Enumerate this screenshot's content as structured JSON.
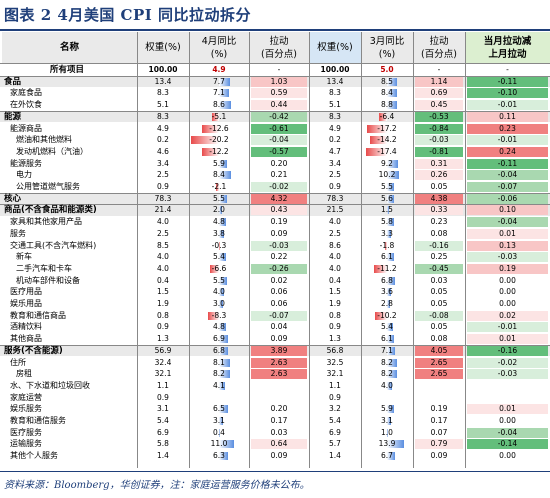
{
  "title": "图表 2   4月美国 CPI 同比拉动拆分",
  "footer": "资料来源：Bloomberg，华创证券，注：家庭运营服务价格未公布。",
  "headers": {
    "name": "名称",
    "weight1": "权重(%)",
    "yoy1": "4月同比\n(%)",
    "contrib1": "拉动\n(百分点)",
    "weight2": "权重(%)",
    "yoy2": "3月同比\n(%)",
    "contrib2": "拉动\n(百分点)",
    "diff": "当月拉动减\n上月拉动"
  },
  "colors": {
    "pos_strong": "#f08080",
    "pos_mid": "#f8c6c6",
    "pos_light": "#fce4e4",
    "neg_strong": "#63be7b",
    "neg_mid": "#a9d8b0",
    "neg_light": "#d8eedb",
    "bar_blue": "#5a8ee0",
    "bar_red": "#e84a4a"
  },
  "rows": [
    {
      "name": "所有项目",
      "indent": 0,
      "bold": true,
      "w1": "100.00",
      "y1": "4.9",
      "c1": "",
      "w2": "100.00",
      "y2": "5.0",
      "c2": "",
      "d": "",
      "total": true
    },
    {
      "name": "食品",
      "indent": 0,
      "bold": true,
      "w1": "13.4",
      "y1": "7.7",
      "c1": "1.03",
      "w2": "13.4",
      "y2": "8.5",
      "c2": "1.14",
      "d": "-0.11",
      "b1": 7.7,
      "b2": 8.5
    },
    {
      "name": "家庭食品",
      "indent": 1,
      "w1": "8.3",
      "y1": "7.1",
      "c1": "0.59",
      "w2": "8.3",
      "y2": "8.4",
      "c2": "0.69",
      "d": "-0.10",
      "b1": 7.1,
      "b2": 8.4
    },
    {
      "name": "在外饮食",
      "indent": 1,
      "w1": "5.1",
      "y1": "8.6",
      "c1": "0.44",
      "w2": "5.1",
      "y2": "8.8",
      "c2": "0.45",
      "d": "-0.01",
      "b1": 8.6,
      "b2": 8.8
    },
    {
      "name": "能源",
      "indent": 0,
      "bold": true,
      "w1": "8.3",
      "y1": "-5.1",
      "c1": "-0.42",
      "w2": "8.3",
      "y2": "-6.4",
      "c2": "-0.53",
      "d": "0.11",
      "b1": -5.1,
      "b2": -6.4
    },
    {
      "name": "能源商品",
      "indent": 1,
      "w1": "4.9",
      "y1": "-12.6",
      "c1": "-0.61",
      "w2": "4.9",
      "y2": "-17.2",
      "c2": "-0.84",
      "d": "0.23",
      "b1": -12.6,
      "b2": -17.2
    },
    {
      "name": "燃油和其他燃料",
      "indent": 2,
      "w1": "0.2",
      "y1": "-20.2",
      "c1": "-0.04",
      "w2": "0.2",
      "y2": "-14.2",
      "c2": "-0.03",
      "d": "-0.01",
      "b1": -20.2,
      "b2": -14.2
    },
    {
      "name": "发动机燃料（汽油）",
      "indent": 2,
      "w1": "4.6",
      "y1": "-12.2",
      "c1": "-0.57",
      "w2": "4.7",
      "y2": "-17.4",
      "c2": "-0.81",
      "d": "0.24",
      "b1": -12.2,
      "b2": -17.4
    },
    {
      "name": "能源服务",
      "indent": 1,
      "w1": "3.4",
      "y1": "5.9",
      "c1": "0.20",
      "w2": "3.4",
      "y2": "9.2",
      "c2": "0.31",
      "d": "-0.11",
      "b1": 5.9,
      "b2": 9.2
    },
    {
      "name": "电力",
      "indent": 2,
      "w1": "2.5",
      "y1": "8.4",
      "c1": "0.21",
      "w2": "2.5",
      "y2": "10.2",
      "c2": "0.26",
      "d": "-0.04",
      "b1": 8.4,
      "b2": 10.2
    },
    {
      "name": "公用管道燃气服务",
      "indent": 2,
      "w1": "0.9",
      "y1": "-2.1",
      "c1": "-0.02",
      "w2": "0.9",
      "y2": "5.5",
      "c2": "0.05",
      "d": "-0.07",
      "b1": -2.1,
      "b2": 5.5
    },
    {
      "name": "核心",
      "indent": 0,
      "bold": true,
      "w1": "78.3",
      "y1": "5.5",
      "c1": "4.32",
      "w2": "78.3",
      "y2": "5.6",
      "c2": "4.38",
      "d": "-0.06",
      "b1": 5.5,
      "b2": 5.6,
      "core": true
    },
    {
      "name": "商品(不含食品和能源类)",
      "indent": 0,
      "bold": true,
      "w1": "21.4",
      "y1": "2.0",
      "c1": "0.43",
      "w2": "21.5",
      "y2": "1.5",
      "c2": "0.33",
      "d": "0.10",
      "b1": 2.0,
      "b2": 1.5
    },
    {
      "name": "家具和其他家用产品",
      "indent": 1,
      "w1": "4.0",
      "y1": "4.8",
      "c1": "0.19",
      "w2": "4.0",
      "y2": "5.8",
      "c2": "0.23",
      "d": "-0.04",
      "b1": 4.8,
      "b2": 5.8
    },
    {
      "name": "服务",
      "indent": 1,
      "w1": "2.5",
      "y1": "3.8",
      "c1": "0.09",
      "w2": "2.5",
      "y2": "3.3",
      "c2": "0.08",
      "d": "0.01",
      "b1": 3.8,
      "b2": 3.3
    },
    {
      "name": "交通工具(不含汽车燃料)",
      "indent": 1,
      "w1": "8.5",
      "y1": "-0.3",
      "c1": "-0.03",
      "w2": "8.6",
      "y2": "-1.8",
      "c2": "-0.16",
      "d": "0.13",
      "b1": -0.3,
      "b2": -1.8
    },
    {
      "name": "新车",
      "indent": 2,
      "w1": "4.0",
      "y1": "5.4",
      "c1": "0.22",
      "w2": "4.0",
      "y2": "6.1",
      "c2": "0.25",
      "d": "-0.03",
      "b1": 5.4,
      "b2": 6.1
    },
    {
      "name": "二手汽车和卡车",
      "indent": 2,
      "w1": "4.0",
      "y1": "-6.6",
      "c1": "-0.26",
      "w2": "4.0",
      "y2": "-11.2",
      "c2": "-0.45",
      "d": "0.19",
      "b1": -6.6,
      "b2": -11.2
    },
    {
      "name": "机动车部件和设备",
      "indent": 2,
      "w1": "0.4",
      "y1": "5.5",
      "c1": "0.02",
      "w2": "0.4",
      "y2": "6.8",
      "c2": "0.03",
      "d": "0.00",
      "b1": 5.5,
      "b2": 6.8
    },
    {
      "name": "医疗用品",
      "indent": 1,
      "w1": "1.5",
      "y1": "4.0",
      "c1": "0.06",
      "w2": "1.5",
      "y2": "3.6",
      "c2": "0.05",
      "d": "0.00",
      "b1": 4.0,
      "b2": 3.6
    },
    {
      "name": "娱乐用品",
      "indent": 1,
      "w1": "1.9",
      "y1": "3.0",
      "c1": "0.06",
      "w2": "1.9",
      "y2": "2.8",
      "c2": "0.05",
      "d": "0.00",
      "b1": 3.0,
      "b2": 2.8
    },
    {
      "name": "教育和通信商品",
      "indent": 1,
      "w1": "0.8",
      "y1": "-8.3",
      "c1": "-0.07",
      "w2": "0.8",
      "y2": "-10.2",
      "c2": "-0.08",
      "d": "0.02",
      "b1": -8.3,
      "b2": -10.2
    },
    {
      "name": "酒精饮料",
      "indent": 1,
      "w1": "0.9",
      "y1": "4.8",
      "c1": "0.04",
      "w2": "0.9",
      "y2": "5.4",
      "c2": "0.05",
      "d": "-0.01",
      "b1": 4.8,
      "b2": 5.4
    },
    {
      "name": "其他商品",
      "indent": 1,
      "w1": "1.3",
      "y1": "6.9",
      "c1": "0.09",
      "w2": "1.3",
      "y2": "6.1",
      "c2": "0.08",
      "d": "0.01",
      "b1": 6.9,
      "b2": 6.1
    },
    {
      "name": "服务(不含能源)",
      "indent": 0,
      "bold": true,
      "w1": "56.9",
      "y1": "6.8",
      "c1": "3.89",
      "w2": "56.8",
      "y2": "7.1",
      "c2": "4.05",
      "d": "-0.16",
      "b1": 6.8,
      "b2": 7.1,
      "services": true
    },
    {
      "name": "住所",
      "indent": 1,
      "w1": "32.4",
      "y1": "8.1",
      "c1": "2.63",
      "w2": "32.5",
      "y2": "8.2",
      "c2": "2.65",
      "d": "-0.02",
      "b1": 8.1,
      "b2": 8.2
    },
    {
      "name": "房租",
      "indent": 2,
      "w1": "32.1",
      "y1": "8.2",
      "c1": "2.63",
      "w2": "32.1",
      "y2": "8.2",
      "c2": "2.65",
      "d": "-0.03",
      "b1": 8.2,
      "b2": 8.2
    },
    {
      "name": "水、下水道和垃圾回收",
      "indent": 1,
      "w1": "1.1",
      "y1": "4.1",
      "c1": "",
      "w2": "1.1",
      "y2": "4.0",
      "c2": "",
      "d": "",
      "b1": 4.1,
      "b2": 4.0
    },
    {
      "name": "家庭运营",
      "indent": 1,
      "w1": "0.9",
      "y1": "",
      "c1": "",
      "w2": "0.9",
      "y2": "",
      "c2": "",
      "d": ""
    },
    {
      "name": "娱乐服务",
      "indent": 1,
      "w1": "3.1",
      "y1": "6.5",
      "c1": "0.20",
      "w2": "3.2",
      "y2": "5.9",
      "c2": "0.19",
      "d": "0.01",
      "b1": 6.5,
      "b2": 5.9
    },
    {
      "name": "教育和通信服务",
      "indent": 1,
      "w1": "5.4",
      "y1": "3.1",
      "c1": "0.17",
      "w2": "5.4",
      "y2": "3.1",
      "c2": "0.17",
      "d": "0.00",
      "b1": 3.1,
      "b2": 3.1
    },
    {
      "name": "医疗服务",
      "indent": 1,
      "w1": "6.9",
      "y1": "0.4",
      "c1": "0.03",
      "w2": "6.9",
      "y2": "1.0",
      "c2": "0.07",
      "d": "-0.04",
      "b1": 0.4,
      "b2": 1.0
    },
    {
      "name": "运输服务",
      "indent": 1,
      "w1": "5.8",
      "y1": "11.0",
      "c1": "0.64",
      "w2": "5.7",
      "y2": "13.9",
      "c2": "0.79",
      "d": "-0.14",
      "b1": 11.0,
      "b2": 13.9
    },
    {
      "name": "其他个人服务",
      "indent": 1,
      "w1": "1.4",
      "y1": "6.3",
      "c1": "0.09",
      "w2": "1.4",
      "y2": "6.7",
      "c2": "0.09",
      "d": "0.00",
      "b1": 6.3,
      "b2": 6.7
    }
  ]
}
